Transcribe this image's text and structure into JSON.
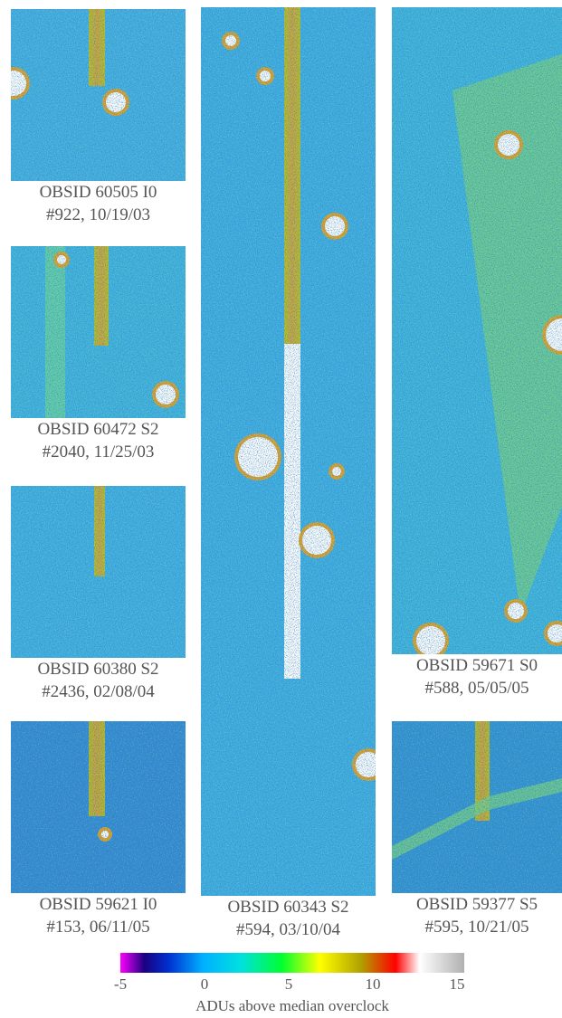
{
  "panels": [
    {
      "line1": "OBSID 60505 I0",
      "line2": "#922, 10/19/03"
    },
    {
      "line1": "OBSID 60472 S2",
      "line2": "#2040, 11/25/03"
    },
    {
      "line1": "OBSID 60380 S2",
      "line2": "#2436, 02/08/04"
    },
    {
      "line1": "OBSID 59621 I0",
      "line2": "#153, 06/11/05"
    },
    {
      "line1": "OBSID 60343 S2",
      "line2": "#594, 03/10/04"
    },
    {
      "line1": "OBSID 59671 S0",
      "line2": "#588, 05/05/05"
    },
    {
      "line1": "OBSID 59377 S5",
      "line2": "#595, 10/21/05"
    }
  ],
  "colorbar": {
    "lim": [
      -5,
      15
    ],
    "ticks": [
      -5,
      0,
      5,
      10,
      15
    ],
    "label": "ADUs above median overclock"
  }
}
